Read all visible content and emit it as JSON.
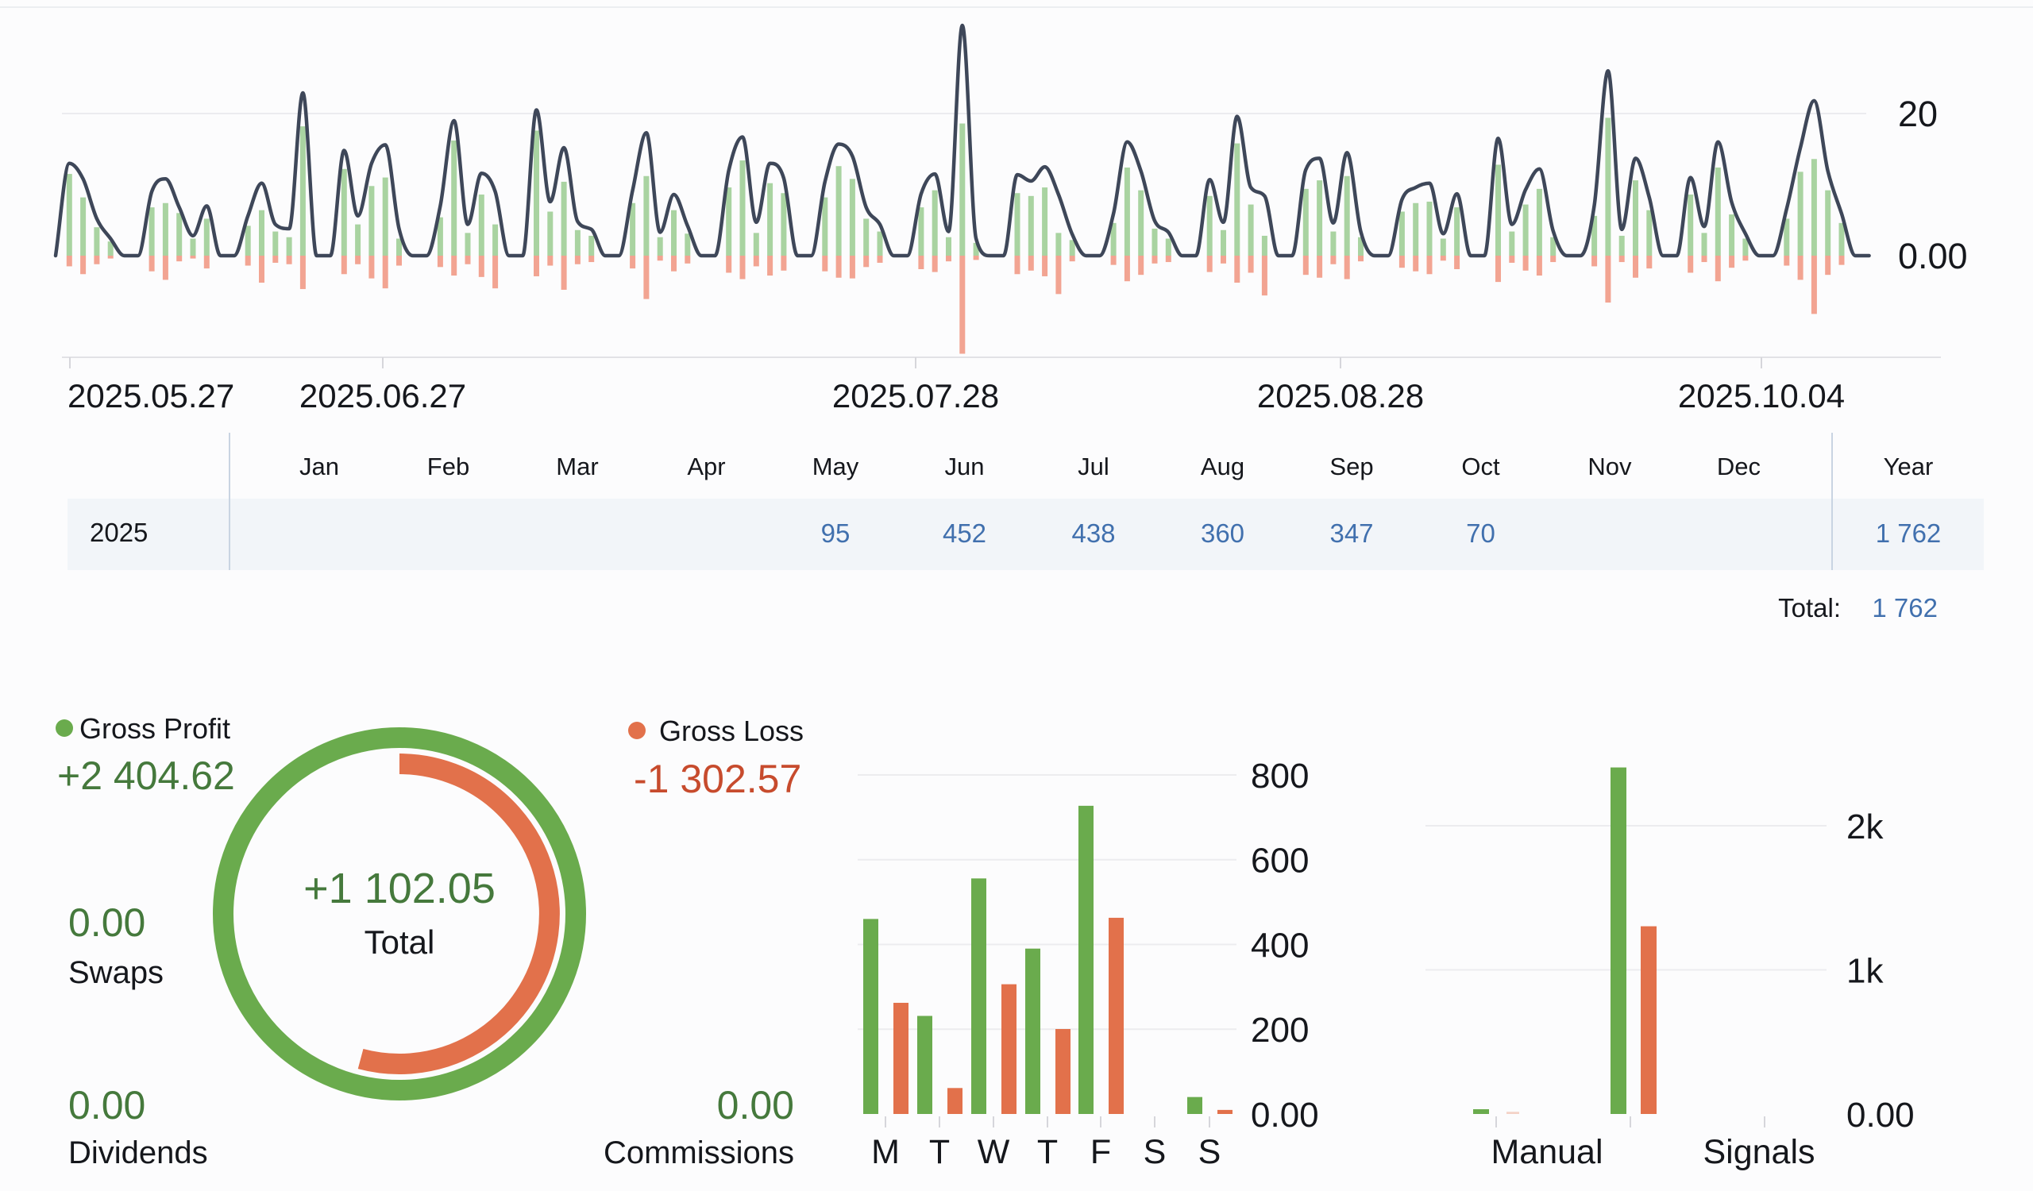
{
  "colors": {
    "green": "#6aab4d",
    "red": "#e2714b",
    "pale_green": "#a9d3a1",
    "pale_red": "#f2a492",
    "line": "#3e4759",
    "blue": "#4170ae",
    "green_text": "#45793c",
    "red_text": "#c74b2d",
    "text": "#15171c",
    "grid": "#ececef",
    "axis": "#e2e2e6",
    "tick": "#d6d6db",
    "row_bg": "#f2f5f9",
    "divider": "#c9d4e2"
  },
  "chart_data": [
    {
      "id": "daily_pl",
      "type": "line+bar",
      "title": "",
      "x_tick_labels": [
        "2025.05.27",
        "2025.06.27",
        "2025.07.28",
        "2025.08.28",
        "2025.10.04"
      ],
      "y_tick_labels": [
        "20",
        "0.00"
      ],
      "y_tick_values": [
        20,
        0
      ],
      "ylim": [
        -15,
        34
      ],
      "grid_on": true,
      "weekends_zero": true,
      "line_equals": "profit_plus_loss",
      "weeks": [
        {
          "p": [
            0,
            11.5,
            8.2,
            4.0,
            2.0
          ],
          "l": [
            0,
            1.5,
            2.6,
            1.2,
            0.4
          ]
        },
        {
          "p": [
            6.8,
            7.4,
            6.0,
            2.4,
            5.2
          ],
          "l": [
            2.2,
            3.4,
            0.8,
            0.4,
            1.8
          ]
        },
        {
          "p": [
            4.2,
            6.4,
            3.4,
            2.6,
            18.2
          ],
          "l": [
            1.4,
            3.8,
            1.0,
            1.2,
            4.7
          ]
        },
        {
          "p": [
            12.2,
            4.4,
            9.8,
            11.0,
            2.4
          ],
          "l": [
            2.6,
            1.2,
            3.2,
            4.6,
            1.4
          ]
        },
        {
          "p": [
            5.4,
            16.2,
            3.2,
            8.6,
            4.4
          ],
          "l": [
            1.6,
            2.8,
            1.2,
            3.0,
            4.6
          ]
        },
        {
          "p": [
            17.6,
            6.2,
            10.4,
            3.6,
            2.8
          ],
          "l": [
            2.9,
            1.4,
            4.8,
            1.2,
            0.9
          ]
        },
        {
          "p": [
            7.4,
            11.2,
            2.6,
            6.4,
            3.1
          ],
          "l": [
            1.8,
            6.1,
            0.7,
            2.2,
            1.1
          ]
        },
        {
          "p": [
            9.6,
            13.4,
            3.2,
            10.2,
            8.8
          ],
          "l": [
            2.4,
            3.3,
            1.5,
            2.8,
            2.1
          ]
        },
        {
          "p": [
            8.2,
            12.6,
            10.8,
            5.2,
            3.4
          ],
          "l": [
            2.2,
            3.1,
            3.2,
            1.6,
            1.0
          ]
        },
        {
          "p": [
            6.8,
            9.2,
            2.6,
            18.6,
            1.8
          ],
          "l": [
            1.9,
            2.3,
            0.8,
            13.8,
            0.6
          ]
        },
        {
          "p": [
            8.8,
            8.4,
            9.6,
            3.2,
            2.2
          ],
          "l": [
            2.6,
            2.1,
            2.9,
            5.4,
            0.8
          ]
        },
        {
          "p": [
            4.6,
            12.4,
            9.2,
            3.8,
            2.4
          ],
          "l": [
            1.3,
            3.6,
            2.7,
            1.1,
            0.9
          ]
        },
        {
          "p": [
            8.4,
            3.6,
            15.8,
            7.2,
            2.8
          ],
          "l": [
            2.3,
            1.1,
            3.8,
            2.4,
            5.6
          ]
        },
        {
          "p": [
            9.4,
            10.6,
            3.4,
            11.2,
            2.6
          ],
          "l": [
            2.7,
            3.1,
            1.2,
            3.3,
            0.8
          ]
        },
        {
          "p": [
            6.2,
            7.4,
            7.6,
            2.4,
            6.8
          ],
          "l": [
            1.7,
            2.2,
            2.6,
            0.7,
            1.9
          ]
        },
        {
          "p": [
            12.8,
            3.4,
            7.2,
            9.4,
            2.6
          ],
          "l": [
            3.7,
            1.0,
            2.1,
            2.8,
            0.9
          ]
        },
        {
          "p": [
            5.6,
            19.4,
            2.8,
            10.6,
            6.4
          ],
          "l": [
            1.5,
            6.6,
            0.9,
            3.1,
            1.8
          ]
        },
        {
          "p": [
            8.6,
            3.2,
            12.4,
            5.8,
            2.4
          ],
          "l": [
            2.4,
            0.9,
            3.6,
            1.7,
            0.7
          ]
        },
        {
          "p": [
            5.2,
            11.8,
            13.6,
            9.2,
            4.6
          ],
          "l": [
            1.4,
            3.4,
            8.2,
            2.7,
            1.3
          ]
        }
      ]
    },
    {
      "id": "by_weekday",
      "type": "bar",
      "categories": [
        "M",
        "T",
        "W",
        "T",
        "F",
        "S",
        "S"
      ],
      "series": [
        {
          "name": "profit",
          "values": [
            460.12,
            231.4,
            555.75,
            390.2,
            727.15,
            0,
            40
          ]
        },
        {
          "name": "loss",
          "values": [
            262.3,
            61.25,
            306.1,
            200.45,
            462.9,
            0,
            9.57
          ]
        }
      ],
      "y_tick_labels": [
        "800",
        "600",
        "400",
        "200",
        "0.00"
      ],
      "y_tick_values": [
        800,
        600,
        400,
        200,
        0
      ],
      "ylim": [
        0,
        860
      ],
      "grid_on": true
    },
    {
      "id": "by_source",
      "type": "bar",
      "categories": [
        "Manual",
        "Signals"
      ],
      "series": [
        {
          "name": "profit",
          "values": [
            2404.62,
            0
          ]
        },
        {
          "name": "loss",
          "values": [
            1302.57,
            0
          ]
        }
      ],
      "edge_marker": {
        "profit": 33,
        "loss": 15
      },
      "y_tick_labels": [
        "2k",
        "1k",
        "0.00"
      ],
      "y_tick_values": [
        2000,
        1000,
        0
      ],
      "ylim": [
        0,
        2560
      ],
      "grid_on": true
    },
    {
      "id": "donut",
      "type": "pie",
      "profit": 2404.62,
      "loss": 1302.57,
      "loss_fraction": 0.5417
    }
  ],
  "monthly_table": {
    "row_label": "2025",
    "headers": [
      "Jan",
      "Feb",
      "Mar",
      "Apr",
      "May",
      "Jun",
      "Jul",
      "Aug",
      "Sep",
      "Oct",
      "Nov",
      "Dec",
      "Year"
    ],
    "values": [
      "",
      "",
      "",
      "",
      "95",
      "452",
      "438",
      "360",
      "347",
      "70",
      "",
      "",
      "1 762"
    ],
    "total_label": "Total:",
    "total_value": "1 762"
  },
  "summary": {
    "gross_profit": {
      "label": "Gross Profit",
      "value": "+2 404.62"
    },
    "gross_loss": {
      "label": "Gross Loss",
      "value": "-1 302.57"
    },
    "total": {
      "label": "Total",
      "value": "+1 102.05"
    },
    "swaps": {
      "label": "Swaps",
      "value": "0.00"
    },
    "dividends": {
      "label": "Dividends",
      "value": "0.00"
    },
    "commissions": {
      "label": "Commissions",
      "value": "0.00"
    }
  }
}
